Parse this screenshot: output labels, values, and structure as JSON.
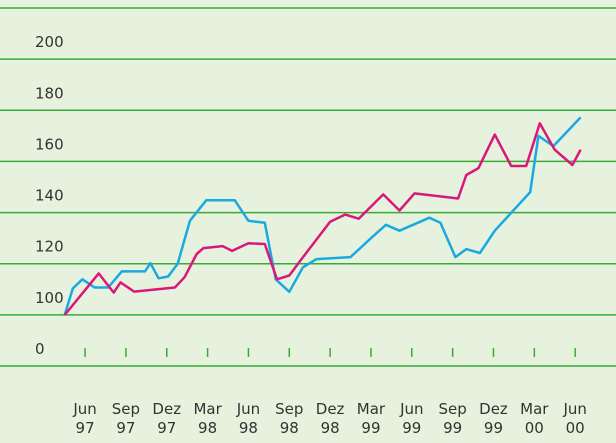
{
  "chart_data": {
    "type": "line",
    "xlim": [
      -6.25,
      39
    ],
    "xticks": [
      {
        "value": 0,
        "label": "Jun 97"
      },
      {
        "value": 3,
        "label": "Sep 97"
      },
      {
        "value": 6,
        "label": "Dez 97"
      },
      {
        "value": 9,
        "label": "Mar 98"
      },
      {
        "value": 12,
        "label": "Jun 98"
      },
      {
        "value": 15,
        "label": "Sep 98"
      },
      {
        "value": 18,
        "label": "Dez 98"
      },
      {
        "value": 21,
        "label": "Mar 99"
      },
      {
        "value": 24,
        "label": "Jun 99"
      },
      {
        "value": 27,
        "label": "Sep 99"
      },
      {
        "value": 30,
        "label": "Dez 99"
      },
      {
        "value": 33,
        "label": "Mar 00"
      },
      {
        "value": 36,
        "label": "Jun 00"
      }
    ],
    "ylim": [
      80,
      220
    ],
    "yticks": [
      0,
      100,
      120,
      140,
      160,
      180,
      200
    ],
    "axis_break": true,
    "grid": true,
    "series": [
      {
        "color": "#1aa9e0",
        "x": [
          -1.5,
          -0.9,
          -0.2,
          0.7,
          1.7,
          2.7,
          4.4,
          4.8,
          5.4,
          6.1,
          6.8,
          7.7,
          8.9,
          9.9,
          11.0,
          12.0,
          13.2,
          14.0,
          15.0,
          16.0,
          17.0,
          19.5,
          21.1,
          22.1,
          23.1,
          25.3,
          26.1,
          27.2,
          28.0,
          29.0,
          30.1,
          32.7,
          33.3,
          34.4,
          36.4
        ],
        "values": [
          100,
          110.3,
          113.9,
          110.7,
          110.7,
          117,
          117,
          120.2,
          114.3,
          115,
          120,
          136.8,
          144.8,
          144.8,
          144.8,
          136.8,
          136,
          113.9,
          109,
          118.6,
          121.8,
          122.6,
          130.5,
          135.2,
          132.9,
          138,
          136,
          122.6,
          125.7,
          124.2,
          132.9,
          148,
          170,
          166,
          177.2
        ]
      },
      {
        "color": "#d8197a",
        "x": [
          -1.5,
          1.0,
          2.1,
          2.6,
          3.6,
          6.6,
          7.3,
          8.2,
          8.7,
          10.1,
          10.8,
          12.0,
          13.2,
          14.1,
          15.0,
          15.9,
          18.0,
          19.1,
          20.1,
          21.9,
          23.1,
          24.2,
          27.4,
          28.0,
          28.9,
          30.1,
          31.3,
          32.4,
          33.4,
          34.5,
          35.8,
          36.4
        ],
        "values": [
          100,
          116.2,
          108.7,
          112.7,
          109.1,
          110.7,
          114.7,
          123.8,
          126.1,
          126.9,
          125,
          128,
          127.7,
          113.9,
          115.4,
          121.8,
          136.4,
          139.2,
          137.6,
          147.1,
          140.8,
          147.5,
          145.5,
          154.7,
          157.4,
          170.5,
          158.2,
          158.2,
          174.9,
          164.6,
          158.6,
          164.6
        ]
      }
    ]
  }
}
